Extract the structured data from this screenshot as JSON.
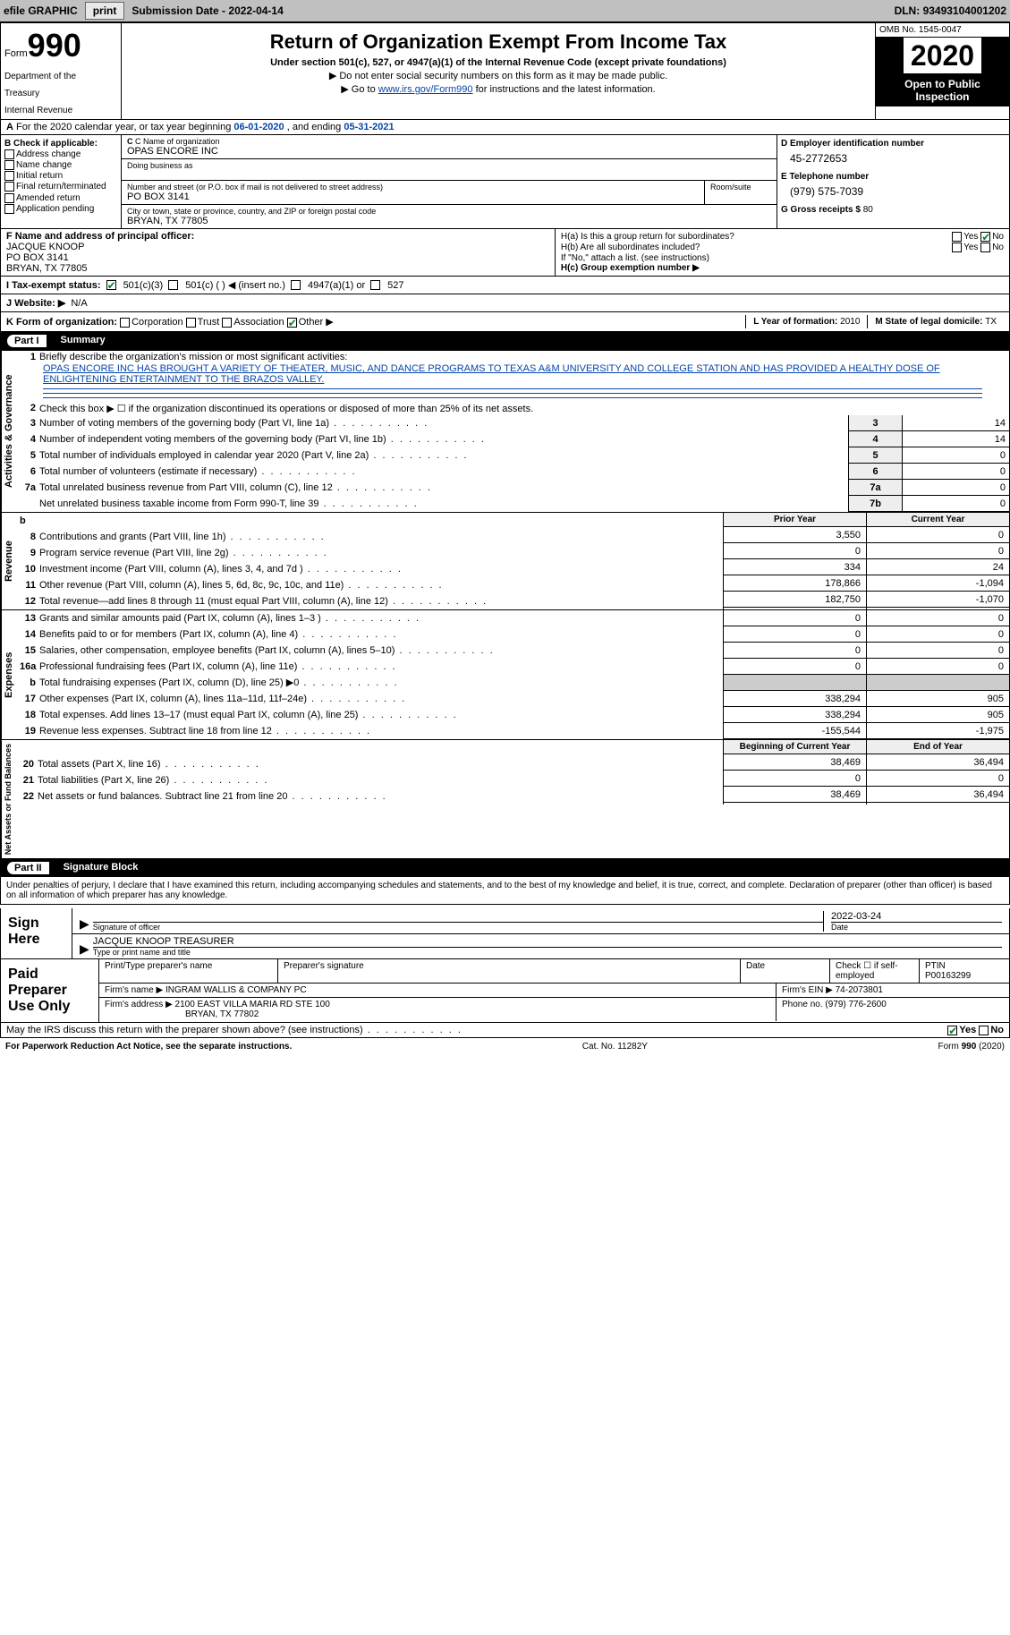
{
  "topbar": {
    "efile_label": "efile GRAPHIC",
    "print_btn": "print",
    "sub_date_label": "Submission Date - ",
    "sub_date": "2022-04-14",
    "dln_label": "DLN: ",
    "dln": "93493104001202"
  },
  "header": {
    "form_word": "Form",
    "form_number": "990",
    "dept1": "Department of the",
    "dept2": "Treasury",
    "dept3": "Internal Revenue",
    "title": "Return of Organization Exempt From Income Tax",
    "subtitle": "Under section 501(c), 527, or 4947(a)(1) of the Internal Revenue Code (except private foundations)",
    "note1": "▶ Do not enter social security numbers on this form as it may be made public.",
    "note2_pre": "▶ Go to ",
    "note2_link": "www.irs.gov/Form990",
    "note2_post": " for instructions and the latest information.",
    "omb": "OMB No. 1545-0047",
    "year": "2020",
    "open1": "Open to Public",
    "open2": "Inspection"
  },
  "period": {
    "text_pre": "For the 2020 calendar year, or tax year beginning ",
    "begin": "06-01-2020",
    "mid": " , and ending ",
    "end": "05-31-2021"
  },
  "boxB": {
    "label": "B Check if applicable:",
    "opts": [
      "Address change",
      "Name change",
      "Initial return",
      "Final return/terminated",
      "Amended return",
      "Application pending"
    ],
    "app_pending_checked": true
  },
  "boxC": {
    "name_label": "C Name of organization",
    "name": "OPAS ENCORE INC",
    "dba_label": "Doing business as",
    "street_label": "Number and street (or P.O. box if mail is not delivered to street address)",
    "street": "PO BOX 3141",
    "room_label": "Room/suite",
    "city_label": "City or town, state or province, country, and ZIP or foreign postal code",
    "city": "BRYAN, TX  77805"
  },
  "boxD": {
    "ein_label": "D Employer identification number",
    "ein": "45-2772653",
    "phone_label": "E Telephone number",
    "phone": "(979) 575-7039",
    "gross_label": "G Gross receipts $ ",
    "gross": "80"
  },
  "boxF": {
    "label": "F  Name and address of principal officer:",
    "name": "JACQUE KNOOP",
    "street": "PO BOX 3141",
    "city": "BRYAN, TX  77805"
  },
  "boxH": {
    "a_label": "H(a)  Is this a group return for subordinates?",
    "a_yes": "Yes",
    "a_no": "No",
    "b_label": "H(b)  Are all subordinates included?",
    "b_note": "If \"No,\" attach a list. (see instructions)",
    "c_label": "H(c)  Group exemption number ▶"
  },
  "rowI": {
    "label": "I   Tax-exempt status:",
    "o1": "501(c)(3)",
    "o2": "501(c) (  ) ◀ (insert no.)",
    "o3": "4947(a)(1) or",
    "o4": "527"
  },
  "rowJ": {
    "label": "J   Website: ▶",
    "value": "N/A"
  },
  "rowK": {
    "label": "K Form of organization:",
    "opts": [
      "Corporation",
      "Trust",
      "Association",
      "Other ▶"
    ],
    "other_checked": true,
    "L_label": "L Year of formation: ",
    "L_val": "2010",
    "M_label": "M State of legal domicile: ",
    "M_val": "TX"
  },
  "partI": {
    "num": "Part I",
    "title": "Summary"
  },
  "gov": {
    "vert": "Activities & Governance",
    "l1_label": "Briefly describe the organization's mission or most significant activities:",
    "mission": "OPAS ENCORE INC HAS BROUGHT A VARIETY OF THEATER, MUSIC, AND DANCE PROGRAMS TO TEXAS A&M UNIVERSITY AND COLLEGE STATION AND HAS PROVIDED A HEALTHY DOSE OF ENLIGHTENING ENTERTAINMENT TO THE BRAZOS VALLEY.",
    "l2": "Check this box ▶ ☐  if the organization discontinued its operations or disposed of more than 25% of its net assets.",
    "rows": [
      {
        "n": "3",
        "t": "Number of voting members of the governing body (Part VI, line 1a)",
        "k": "3",
        "v": "14"
      },
      {
        "n": "4",
        "t": "Number of independent voting members of the governing body (Part VI, line 1b)",
        "k": "4",
        "v": "14"
      },
      {
        "n": "5",
        "t": "Total number of individuals employed in calendar year 2020 (Part V, line 2a)",
        "k": "5",
        "v": "0"
      },
      {
        "n": "6",
        "t": "Total number of volunteers (estimate if necessary)",
        "k": "6",
        "v": "0"
      },
      {
        "n": "7a",
        "t": "Total unrelated business revenue from Part VIII, column (C), line 12",
        "k": "7a",
        "v": "0"
      },
      {
        "n": "",
        "t": "Net unrelated business taxable income from Form 990-T, line 39",
        "k": "7b",
        "v": "0"
      }
    ]
  },
  "rev": {
    "vert": "Revenue",
    "hdr_b": "b",
    "hdr_prior": "Prior Year",
    "hdr_curr": "Current Year",
    "rows": [
      {
        "n": "8",
        "t": "Contributions and grants (Part VIII, line 1h)",
        "p": "3,550",
        "c": "0"
      },
      {
        "n": "9",
        "t": "Program service revenue (Part VIII, line 2g)",
        "p": "0",
        "c": "0"
      },
      {
        "n": "10",
        "t": "Investment income (Part VIII, column (A), lines 3, 4, and 7d )",
        "p": "334",
        "c": "24"
      },
      {
        "n": "11",
        "t": "Other revenue (Part VIII, column (A), lines 5, 6d, 8c, 9c, 10c, and 11e)",
        "p": "178,866",
        "c": "-1,094"
      },
      {
        "n": "12",
        "t": "Total revenue—add lines 8 through 11 (must equal Part VIII, column (A), line 12)",
        "p": "182,750",
        "c": "-1,070"
      }
    ]
  },
  "exp": {
    "vert": "Expenses",
    "rows": [
      {
        "n": "13",
        "t": "Grants and similar amounts paid (Part IX, column (A), lines 1–3 )",
        "p": "0",
        "c": "0"
      },
      {
        "n": "14",
        "t": "Benefits paid to or for members (Part IX, column (A), line 4)",
        "p": "0",
        "c": "0"
      },
      {
        "n": "15",
        "t": "Salaries, other compensation, employee benefits (Part IX, column (A), lines 5–10)",
        "p": "0",
        "c": "0"
      },
      {
        "n": "16a",
        "t": "Professional fundraising fees (Part IX, column (A), line 11e)",
        "p": "0",
        "c": "0"
      },
      {
        "n": "b",
        "t": "Total fundraising expenses (Part IX, column (D), line 25) ▶0",
        "shade": true
      },
      {
        "n": "17",
        "t": "Other expenses (Part IX, column (A), lines 11a–11d, 11f–24e)",
        "p": "338,294",
        "c": "905"
      },
      {
        "n": "18",
        "t": "Total expenses. Add lines 13–17 (must equal Part IX, column (A), line 25)",
        "p": "338,294",
        "c": "905"
      },
      {
        "n": "19",
        "t": "Revenue less expenses. Subtract line 18 from line 12",
        "p": "-155,544",
        "c": "-1,975"
      }
    ]
  },
  "net": {
    "vert": "Net Assets or Fund Balances",
    "hdr_prior": "Beginning of Current Year",
    "hdr_curr": "End of Year",
    "rows": [
      {
        "n": "20",
        "t": "Total assets (Part X, line 16)",
        "p": "38,469",
        "c": "36,494"
      },
      {
        "n": "21",
        "t": "Total liabilities (Part X, line 26)",
        "p": "0",
        "c": "0"
      },
      {
        "n": "22",
        "t": "Net assets or fund balances. Subtract line 21 from line 20",
        "p": "38,469",
        "c": "36,494"
      }
    ]
  },
  "partII": {
    "num": "Part II",
    "title": "Signature Block"
  },
  "sig": {
    "disclaimer": "Under penalties of perjury, I declare that I have examined this return, including accompanying schedules and statements, and to the best of my knowledge and belief, it is true, correct, and complete. Declaration of preparer (other than officer) is based on all information of which preparer has any knowledge.",
    "sign_here": "Sign Here",
    "sig_of_officer": "Signature of officer",
    "date_val": "2022-03-24",
    "date_label": "Date",
    "name_title": "JACQUE KNOOP  TREASURER",
    "name_label": "Type or print name and title"
  },
  "paid": {
    "label": "Paid Preparer Use Only",
    "h1": "Print/Type preparer's name",
    "h2": "Preparer's signature",
    "h3": "Date",
    "h4_pre": "Check ☐ if self-employed",
    "h5_label": "PTIN",
    "h5_val": "P00163299",
    "firm_name_label": "Firm's name    ▶",
    "firm_name": "INGRAM WALLIS & COMPANY PC",
    "firm_ein_label": "Firm's EIN ▶",
    "firm_ein": "74-2073801",
    "firm_addr_label": "Firm's address ▶",
    "firm_addr1": "2100 EAST VILLA MARIA RD STE 100",
    "firm_addr2": "BRYAN, TX  77802",
    "phone_label": "Phone no. ",
    "phone": "(979) 776-2600"
  },
  "discuss": {
    "text": "May the IRS discuss this return with the preparer shown above? (see instructions)",
    "yes": "Yes",
    "no": "No"
  },
  "footer": {
    "left": "For Paperwork Reduction Act Notice, see the separate instructions.",
    "mid": "Cat. No. 11282Y",
    "right": "Form 990 (2020)"
  },
  "colors": {
    "link": "#0645ad",
    "check": "#0a7d2c",
    "shade": "#cccccc",
    "hdr_shade": "#eeeeee"
  }
}
